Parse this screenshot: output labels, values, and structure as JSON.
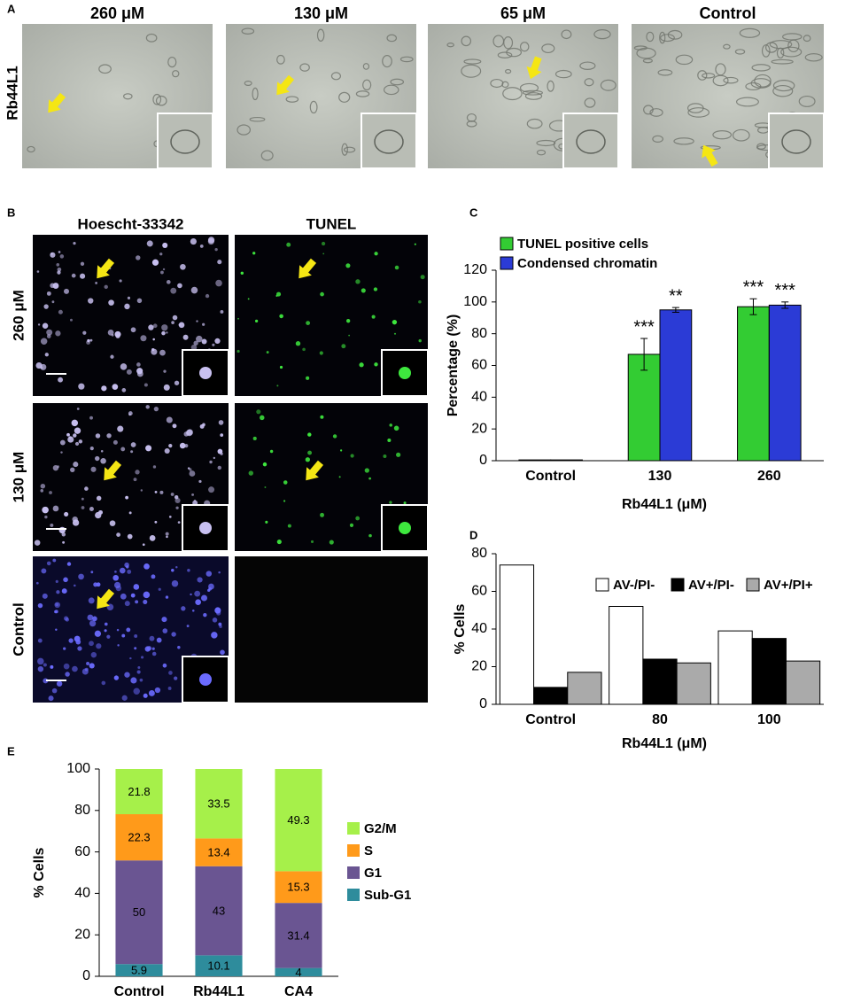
{
  "panels": {
    "a": {
      "label": "A",
      "row_label": "Rb44L1",
      "columns": [
        "260 μM",
        "130 μM",
        "65 μM",
        "Control"
      ]
    },
    "b": {
      "label": "B",
      "columns": [
        "Hoescht-33342",
        "TUNEL"
      ],
      "rows": [
        "260 μM",
        "130 μM",
        "Control"
      ]
    }
  },
  "chart_data": [
    {
      "panel_label": "C",
      "type": "bar",
      "ylabel": "Percentage (%)",
      "xlabel": "Rb44L1 (μM)",
      "categories": [
        "Control",
        "130",
        "260"
      ],
      "series": [
        {
          "name": "TUNEL positive cells",
          "color": "#33cc33",
          "values": [
            0.5,
            67,
            97
          ],
          "errors": [
            null,
            10,
            5
          ],
          "significance": [
            null,
            "***",
            "***"
          ]
        },
        {
          "name": "Condensed chromatin",
          "color": "#2b3bd6",
          "values": [
            0.5,
            95,
            98
          ],
          "errors": [
            null,
            1.5,
            2
          ],
          "significance": [
            null,
            "**",
            "***"
          ]
        }
      ],
      "ylim": [
        0,
        120
      ],
      "yticks": [
        0,
        20,
        40,
        60,
        80,
        100,
        120
      ],
      "grid": false,
      "legend": "upper left"
    },
    {
      "panel_label": "D",
      "type": "bar",
      "ylabel": "% Cells",
      "xlabel": "Rb44L1 (μM)",
      "categories": [
        "Control",
        "80",
        "100"
      ],
      "series": [
        {
          "name": "AV-/PI-",
          "color": "#ffffff",
          "values": [
            74,
            52,
            39
          ]
        },
        {
          "name": "AV+/PI-",
          "color": "#000000",
          "values": [
            9,
            24,
            35
          ]
        },
        {
          "name": "AV+/PI+",
          "color": "#aaaaaa",
          "values": [
            17,
            22,
            23
          ]
        }
      ],
      "ylim": [
        0,
        80
      ],
      "yticks": [
        0,
        20,
        40,
        60,
        80
      ],
      "grid": false,
      "legend": "upper center"
    },
    {
      "panel_label": "E",
      "type": "stacked_bar",
      "ylabel": "% Cells",
      "categories": [
        "Control",
        "Rb44L1",
        "CA4"
      ],
      "series": [
        {
          "name": "Sub-G1",
          "color": "#2e8c9c",
          "values": [
            5.9,
            10.1,
            4
          ]
        },
        {
          "name": "G1",
          "color": "#6a5592",
          "values": [
            50,
            43,
            31.4
          ]
        },
        {
          "name": "S",
          "color": "#ff9a1a",
          "values": [
            22.3,
            13.4,
            15.3
          ]
        },
        {
          "name": "G2/M",
          "color": "#a6f04a",
          "values": [
            21.8,
            33.5,
            49.3
          ]
        }
      ],
      "ylim": [
        0,
        100
      ],
      "yticks": [
        0,
        20,
        40,
        60,
        80,
        100
      ],
      "grid": false,
      "legend": "right"
    }
  ]
}
